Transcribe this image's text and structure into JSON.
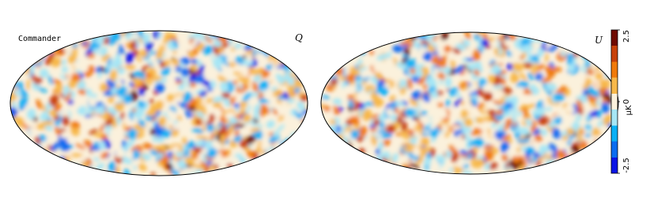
{
  "panels": [
    {
      "label": "Commander",
      "stokes": "Q"
    },
    {
      "stokes": "U"
    }
  ],
  "colorbar": {
    "lim": [
      -2.5,
      2.5
    ],
    "ticks": [
      -2.5,
      0,
      2.5
    ],
    "label": "μK",
    "colors": [
      "#0a14e6",
      "#0a6cf0",
      "#0ab0f5",
      "#a6e6f5",
      "#fbf1dc",
      "#f7b84a",
      "#f07a0a",
      "#c8420a",
      "#6e0a00"
    ]
  }
}
